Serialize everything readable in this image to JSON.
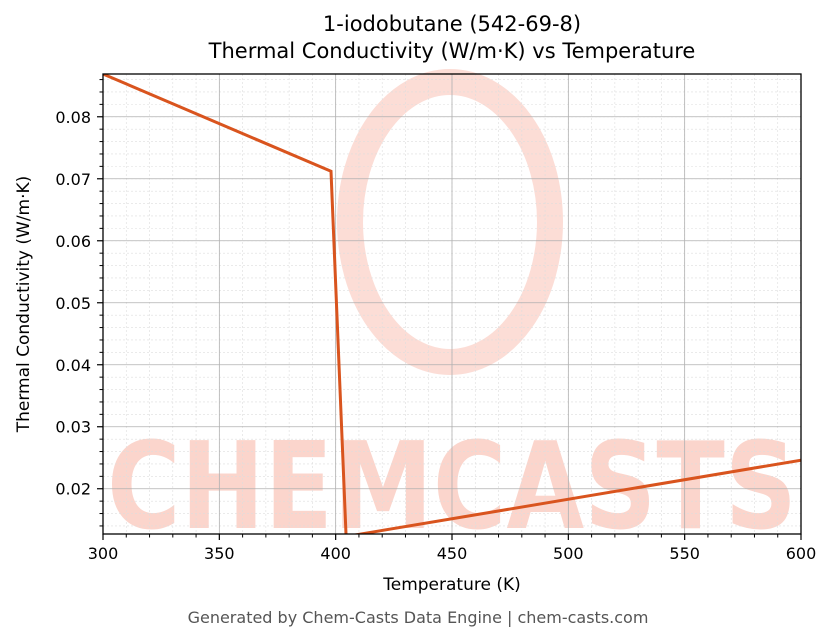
{
  "title": {
    "line1": "1-iodobutane (542-69-8)",
    "line2": "Thermal Conductivity (W/m·K) vs Temperature"
  },
  "axes": {
    "xlabel": "Temperature (K)",
    "ylabel": "Thermal Conductivity (W/m·K)"
  },
  "footer": "Generated by Chem-Casts Data Engine | chem-casts.com",
  "watermark": "CHEMCASTS",
  "colors": {
    "line": "#d9541e",
    "watermark": "#fbd5cc",
    "grid_major": "#b0b0b0",
    "grid_minor": "#dddddd"
  },
  "chart_data": {
    "type": "line",
    "title": "1-iodobutane (542-69-8) Thermal Conductivity (W/m·K) vs Temperature",
    "xlabel": "Temperature (K)",
    "ylabel": "Thermal Conductivity (W/m·K)",
    "xlim": [
      300,
      600
    ],
    "ylim": [
      0.0127,
      0.0869
    ],
    "xticks": [
      300,
      350,
      400,
      450,
      500,
      550,
      600
    ],
    "yticks": [
      0.02,
      0.03,
      0.04,
      0.05,
      0.06,
      0.07,
      0.08
    ],
    "grid": true,
    "legend": null,
    "series": [
      {
        "name": "Thermal Conductivity",
        "x": [
          300,
          398,
          404.5,
          600
        ],
        "y": [
          0.0869,
          0.0712,
          0.0123,
          0.0246
        ]
      }
    ]
  }
}
